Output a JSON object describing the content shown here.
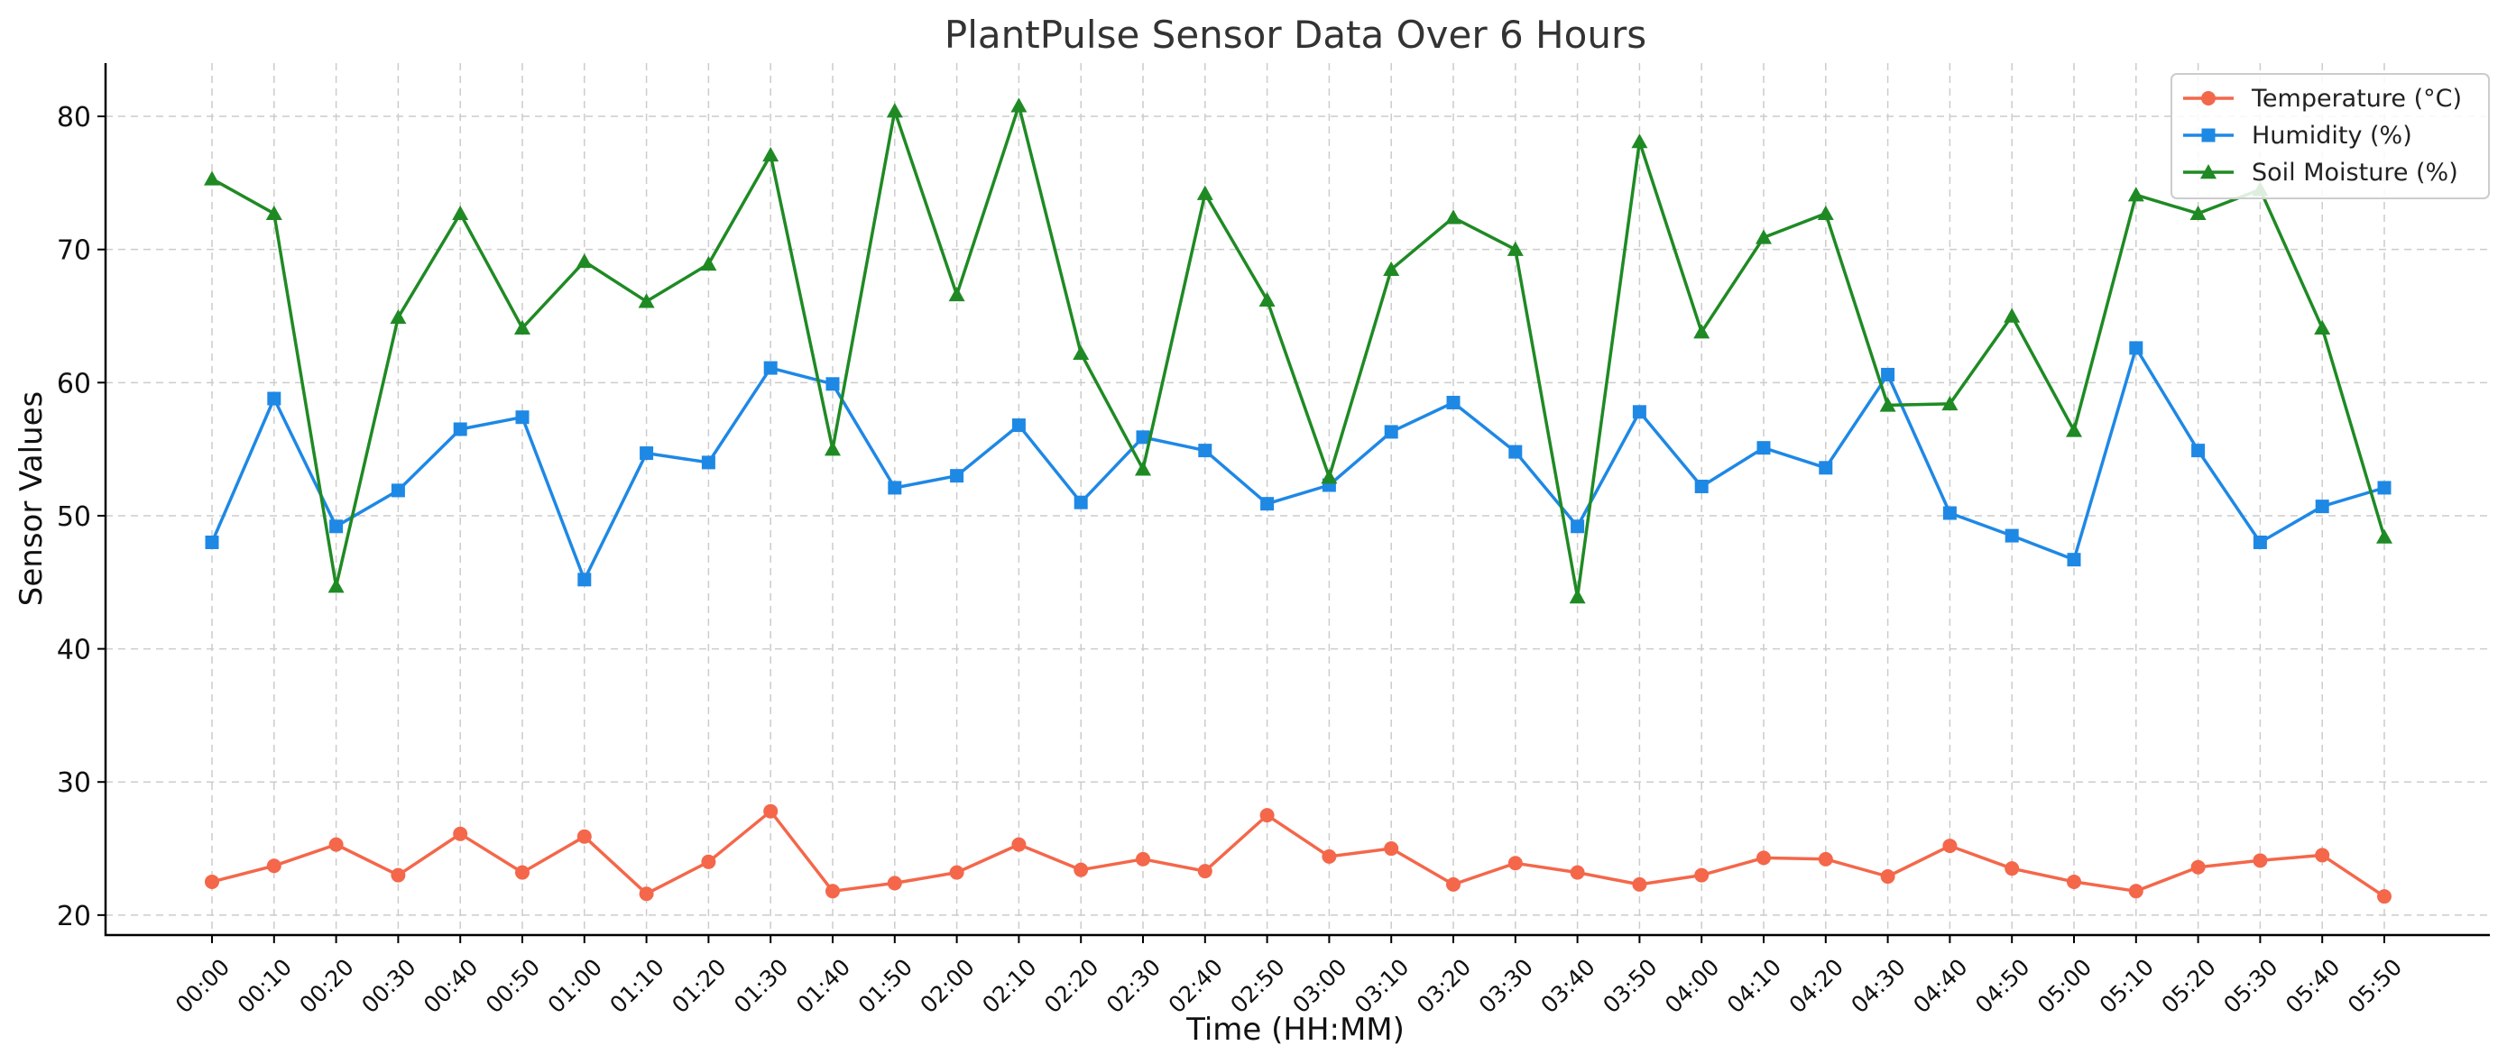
{
  "chart_data": {
    "type": "line",
    "title": "PlantPulse Sensor Data Over 6 Hours",
    "xlabel": "Time (HH:MM)",
    "ylabel": "Sensor Values",
    "ylim": [
      18.5,
      84
    ],
    "yticks": [
      20,
      30,
      40,
      50,
      60,
      70,
      80
    ],
    "grid": true,
    "legend_position": "top-right",
    "categories": [
      "00:00",
      "00:10",
      "00:20",
      "00:30",
      "00:40",
      "00:50",
      "01:00",
      "01:10",
      "01:20",
      "01:30",
      "01:40",
      "01:50",
      "02:00",
      "02:10",
      "02:20",
      "02:30",
      "02:40",
      "02:50",
      "03:00",
      "03:10",
      "03:20",
      "03:30",
      "03:40",
      "03:50",
      "04:00",
      "04:10",
      "04:20",
      "04:30",
      "04:40",
      "04:50",
      "05:00",
      "05:10",
      "05:20",
      "05:30",
      "05:40",
      "05:50"
    ],
    "series": [
      {
        "name": "Temperature (°C)",
        "color": "#f4674a",
        "marker": "circle",
        "values": [
          22.5,
          23.7,
          25.3,
          23.0,
          26.1,
          23.2,
          25.9,
          21.6,
          24.0,
          27.8,
          21.8,
          22.4,
          23.2,
          25.3,
          23.4,
          24.2,
          23.3,
          27.5,
          24.4,
          25.0,
          22.3,
          23.9,
          23.2,
          22.3,
          23.0,
          24.3,
          24.2,
          22.9,
          25.2,
          23.5,
          22.5,
          21.8,
          23.6,
          24.1,
          24.5,
          21.4
        ]
      },
      {
        "name": "Humidity (%)",
        "color": "#1e88e5",
        "marker": "square",
        "values": [
          48.0,
          58.8,
          49.2,
          51.9,
          56.5,
          57.4,
          45.2,
          54.7,
          54.0,
          61.1,
          59.9,
          52.1,
          53.0,
          56.8,
          51.0,
          55.9,
          54.9,
          50.9,
          52.3,
          56.3,
          58.5,
          54.8,
          49.2,
          57.8,
          52.2,
          55.1,
          53.6,
          60.6,
          50.2,
          48.5,
          46.7,
          62.6,
          54.9,
          48.0,
          50.7,
          52.1
        ]
      },
      {
        "name": "Soil Moisture (%)",
        "color": "#1f8a24",
        "marker": "triangle",
        "values": [
          75.3,
          72.7,
          44.7,
          64.9,
          72.7,
          64.1,
          69.1,
          66.1,
          68.9,
          77.1,
          55.0,
          80.4,
          66.6,
          80.8,
          62.2,
          53.5,
          74.2,
          66.2,
          52.9,
          68.5,
          72.4,
          70.0,
          43.9,
          78.1,
          63.8,
          70.9,
          72.7,
          58.3,
          58.4,
          65.0,
          56.4,
          74.1,
          72.7,
          74.5,
          64.1,
          48.4
        ]
      }
    ]
  }
}
